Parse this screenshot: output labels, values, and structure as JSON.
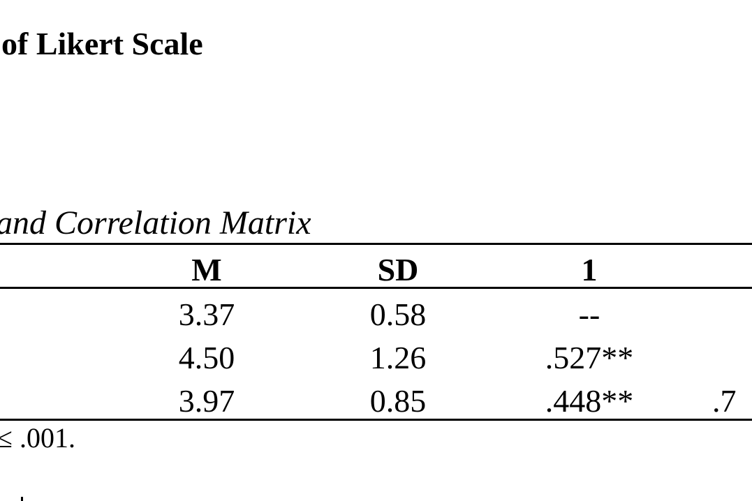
{
  "heading": "of Likert Scale",
  "caption": "and Correlation Matrix",
  "table": {
    "headers": [
      "M",
      "SD",
      "1"
    ],
    "rows": [
      {
        "m": "3.37",
        "sd": "0.58",
        "c1": "--",
        "c2": ""
      },
      {
        "m": "4.50",
        "sd": "1.26",
        "c1": ".527**",
        "c2": ""
      },
      {
        "m": "3.97",
        "sd": "0.85",
        "c1": ".448**",
        "c2": ".7"
      }
    ]
  },
  "note": "≤ .001."
}
